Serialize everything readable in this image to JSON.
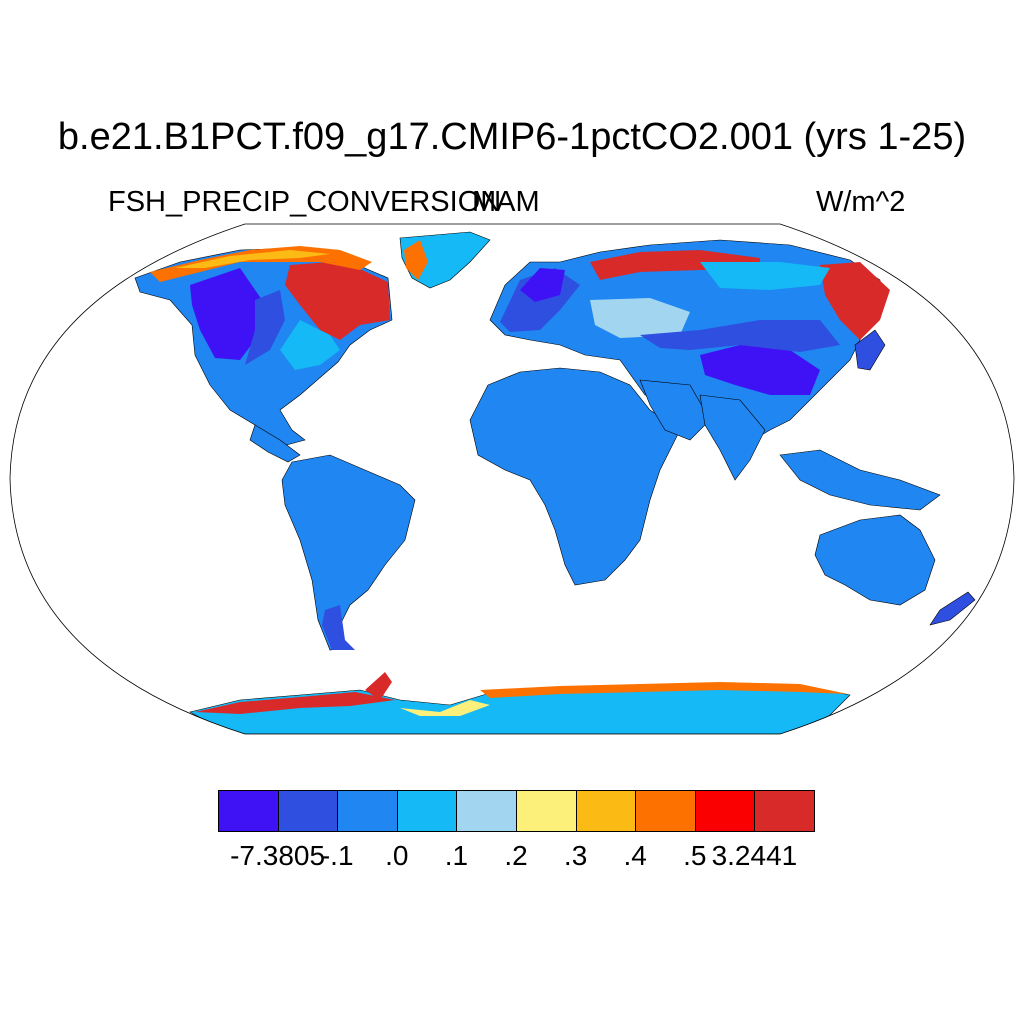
{
  "title": "b.e21.B1PCT.f09_g17.CMIP6-1pctCO2.001 (yrs 1-25)",
  "left_label": "FSH_PRECIP_CONVERSION",
  "center_label": "MAM",
  "right_label": "W/m^2",
  "colorbar": {
    "colors": [
      "#3f12f5",
      "#2f4fe0",
      "#1f86f2",
      "#14b9f5",
      "#a2d5f0",
      "#fdf07a",
      "#fcbb14",
      "#fc7100",
      "#fb0000",
      "#d92a2a"
    ],
    "labels": [
      "-7.3805",
      "-.1",
      ".0",
      ".1",
      ".2",
      ".3",
      ".4",
      ".5",
      "3.2441"
    ]
  },
  "map": {
    "projection": "Robinson",
    "ocean_fill": "#ffffff",
    "dominant_land_class": ".0 to .1"
  }
}
